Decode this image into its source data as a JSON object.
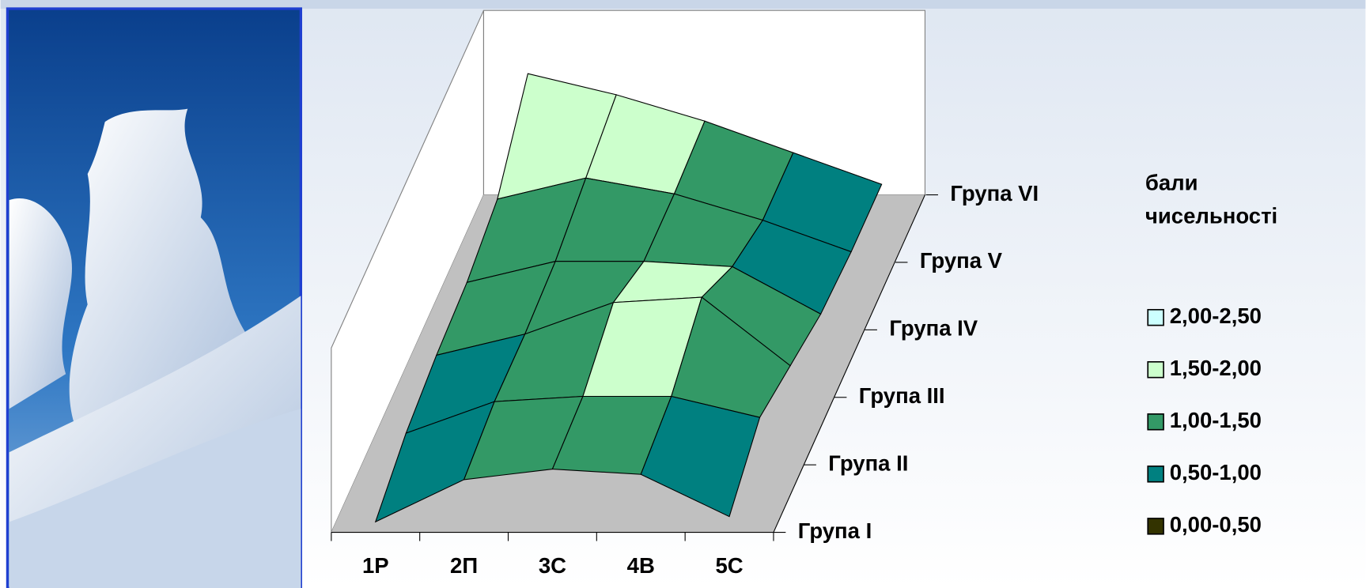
{
  "chart_data": {
    "type": "surface",
    "categories": [
      "1Р",
      "2П",
      "3С",
      "4В",
      "5С"
    ],
    "series": [
      {
        "name": "Група I",
        "values": [
          0.2,
          1.0,
          1.2,
          1.1,
          0.3
        ]
      },
      {
        "name": "Група II",
        "values": [
          0.6,
          1.2,
          1.3,
          1.3,
          0.9
        ]
      },
      {
        "name": "Група III",
        "values": [
          0.8,
          1.2,
          1.8,
          1.9,
          0.6
        ]
      },
      {
        "name": "Група IV",
        "values": [
          0.9,
          1.3,
          1.3,
          1.2,
          0.3
        ]
      },
      {
        "name": "Група V",
        "values": [
          1.2,
          1.6,
          1.3,
          0.8,
          0.2
        ]
      },
      {
        "name": "Група VI",
        "values": [
          2.3,
          1.9,
          1.4,
          0.8,
          0.2
        ]
      }
    ],
    "zlim": [
      0,
      3.5
    ],
    "legend_title": [
      "бали",
      "чисельності"
    ],
    "bands": [
      {
        "from": 2.0,
        "to": 2.5,
        "label": "2,00-2,50",
        "color": "#ccffff"
      },
      {
        "from": 1.5,
        "to": 2.0,
        "label": "1,50-2,00",
        "color": "#ccffcc"
      },
      {
        "from": 1.0,
        "to": 1.5,
        "label": "1,00-1,50",
        "color": "#339966"
      },
      {
        "from": 0.5,
        "to": 1.0,
        "label": "0,50-1,00",
        "color": "#008080"
      },
      {
        "from": 0.0,
        "to": 0.5,
        "label": "0,00-0,50",
        "color": "#333300"
      }
    ]
  }
}
